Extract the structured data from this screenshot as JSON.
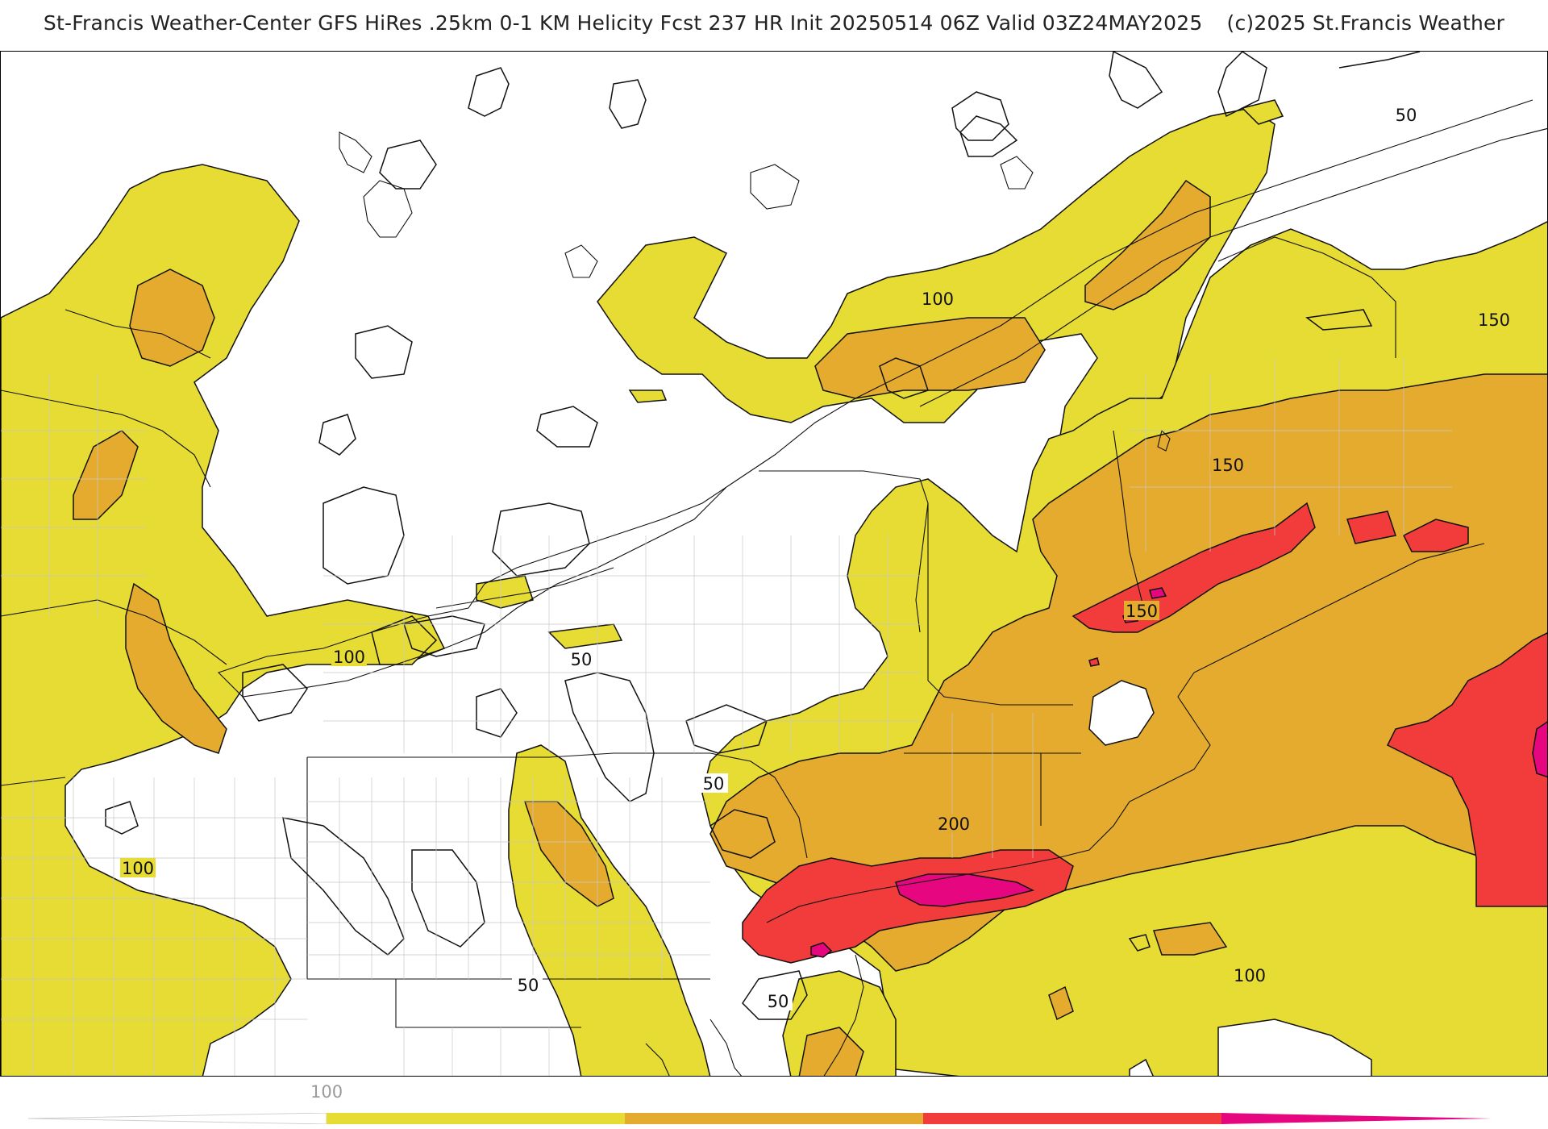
{
  "header": {
    "title": "St-Francis Weather-Center GFS HiRes .25km 0-1 KM Helicity Fcst 237 HR Init 20250514 06Z  Valid 03Z24MAY2025",
    "copyright": "(c)2025 St.Francis Weather"
  },
  "map": {
    "variable": "0-1 KM Helicity",
    "contour_labels": [
      "50",
      "100",
      "150",
      "200",
      "50",
      "100",
      "150",
      "50",
      "50",
      "100",
      "100",
      "150",
      "50"
    ],
    "fill_colors": {
      "band_100_150": "#e6dc33",
      "band_150_200": "#e5ab2e",
      "band_200_250": "#f23c3c",
      "band_250_plus": "#e6067f"
    }
  },
  "colorbar": {
    "tick_label": "100",
    "segments": [
      "#e6dc33",
      "#e5ab2e",
      "#f23c3c",
      "#e6067f"
    ]
  }
}
